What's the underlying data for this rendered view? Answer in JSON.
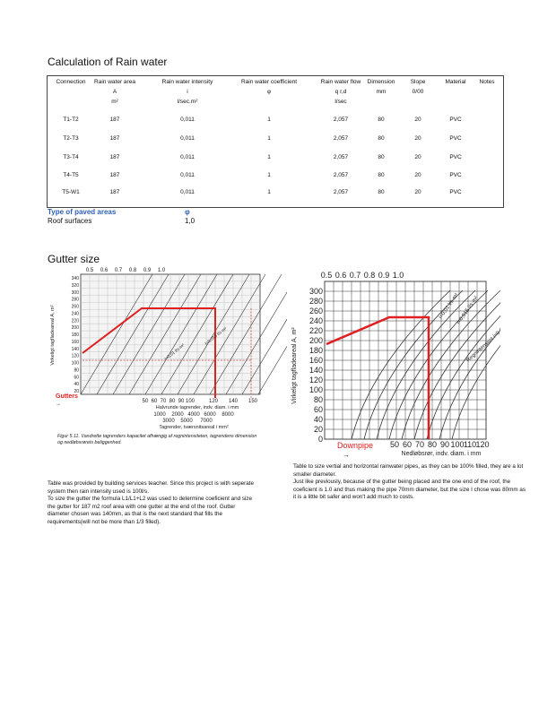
{
  "calc_title": "Calculation of Rain water",
  "table": {
    "headers": [
      {
        "l1": "Connection",
        "l2": "",
        "l3": ""
      },
      {
        "l1": "Rain water area",
        "l2": "A",
        "l3": "m²"
      },
      {
        "l1": "Rain water intensity",
        "l2": "i",
        "l3": "l/sec.m²"
      },
      {
        "l1": "Rain water coefficient",
        "l2": "φ",
        "l3": ""
      },
      {
        "l1": "Rain water flow",
        "l2": "q r,d",
        "l3": "l/sec"
      },
      {
        "l1": "Dimension",
        "l2": "mm",
        "l3": ""
      },
      {
        "l1": "Slope",
        "l2": "0/00",
        "l3": ""
      },
      {
        "l1": "Material",
        "l2": "",
        "l3": ""
      },
      {
        "l1": "Notes",
        "l2": "",
        "l3": ""
      }
    ],
    "rows": [
      [
        "T1-T2",
        "187",
        "0,011",
        "1",
        "2,057",
        "80",
        "20",
        "PVC",
        ""
      ],
      [
        "T2-T3",
        "187",
        "0,011",
        "1",
        "2,057",
        "80",
        "20",
        "PVC",
        ""
      ],
      [
        "T3-T4",
        "187",
        "0,011",
        "1",
        "2,057",
        "80",
        "20",
        "PVC",
        ""
      ],
      [
        "T4-T5",
        "187",
        "0,011",
        "1",
        "2,057",
        "80",
        "20",
        "PVC",
        ""
      ],
      [
        "T5-W1",
        "187",
        "0,011",
        "1",
        "2,057",
        "80",
        "20",
        "PVC",
        ""
      ]
    ]
  },
  "paved": {
    "label": "Type of paved areas",
    "symbol": "φ",
    "row_label": "Roof surfaces",
    "row_value": "1,0"
  },
  "gutter_title": "Gutter size",
  "chart_left": {
    "top_ticks": [
      "0.5",
      "0.6",
      "0.7",
      "0.8",
      "0.9",
      "1.0"
    ],
    "y_ticks": [
      "340",
      "320",
      "300",
      "280",
      "260",
      "240",
      "220",
      "200",
      "180",
      "160",
      "140",
      "120",
      "100",
      "80",
      "60",
      "40",
      "20"
    ],
    "y_label": "Virkeligt tagfladeareal A, m²",
    "x_ticks": [
      "50",
      "60",
      "70",
      "80",
      "90",
      "100",
      "120",
      "140",
      "150"
    ],
    "x_label": "Halvrunde tagrender, indv. diam. i mm",
    "x2_ticks_a": [
      "1000",
      "2000",
      "4000",
      "6000",
      "8000"
    ],
    "x2_ticks_b": [
      "3000",
      "5000",
      "7000"
    ],
    "x2_label": "Tagrender, tværsnitsareal i mm²",
    "badge": "Gutters",
    "caption": "Figur 5.11. Vandrette tagrenders kapacitet afhængig af regnintensiteten, tagrendens dimension og nedløbsrørets beliggenhed.",
    "curve_labels": [
      "i=0,01 l/s·m²",
      "i=0,015 l/s·m²"
    ],
    "red_color": "#e02020"
  },
  "chart_right": {
    "top_ticks": [
      "0.5",
      "0.6",
      "0.7",
      "0.8",
      "0.9",
      "1.0"
    ],
    "y_ticks": [
      "300",
      "280",
      "260",
      "240",
      "220",
      "200",
      "180",
      "160",
      "140",
      "120",
      "100",
      "80",
      "60",
      "40",
      "20",
      "0"
    ],
    "y_label": "Virkeligt tagfladeareal A, m²",
    "x_ticks": [
      "50",
      "60",
      "70",
      "80",
      "90",
      "100",
      "110",
      "120"
    ],
    "x_label": "Nedløbsrør, indv. diam. i mm",
    "badge": "Downpipe",
    "curve_labels": [
      "i=0,01 l/s·m²",
      "i=0,015 l/s·m²",
      "Regnintensitet i=0,02 l/s·m²"
    ],
    "red_color": "#e02020"
  },
  "note_left": "Table was provided by building services teacher. Since this project is with seperate system then rain intensity used is 100l/s.\nTo size the gutter the formula L1/L1+L2 was used to determine coeficient and size the gutter for 187 m2 roof area with one gutter at the end of the roof. Gutter diameter chosen was 140mm, as that is the next standard that fills the requirements(will not be more than 1/3 filled).",
  "note_right": "Table to size vertial and horizontal rainwater pipes, as they can be 100% filled, they are a lot smaller diameter.\nJust like previously, because of the gutter being placed and the one end of the roof, the coeficient is 1.0 and thus making the pipe 70mm diameter, but the size I chose was 80mm as it is a little bit safer and won't add much to costs."
}
